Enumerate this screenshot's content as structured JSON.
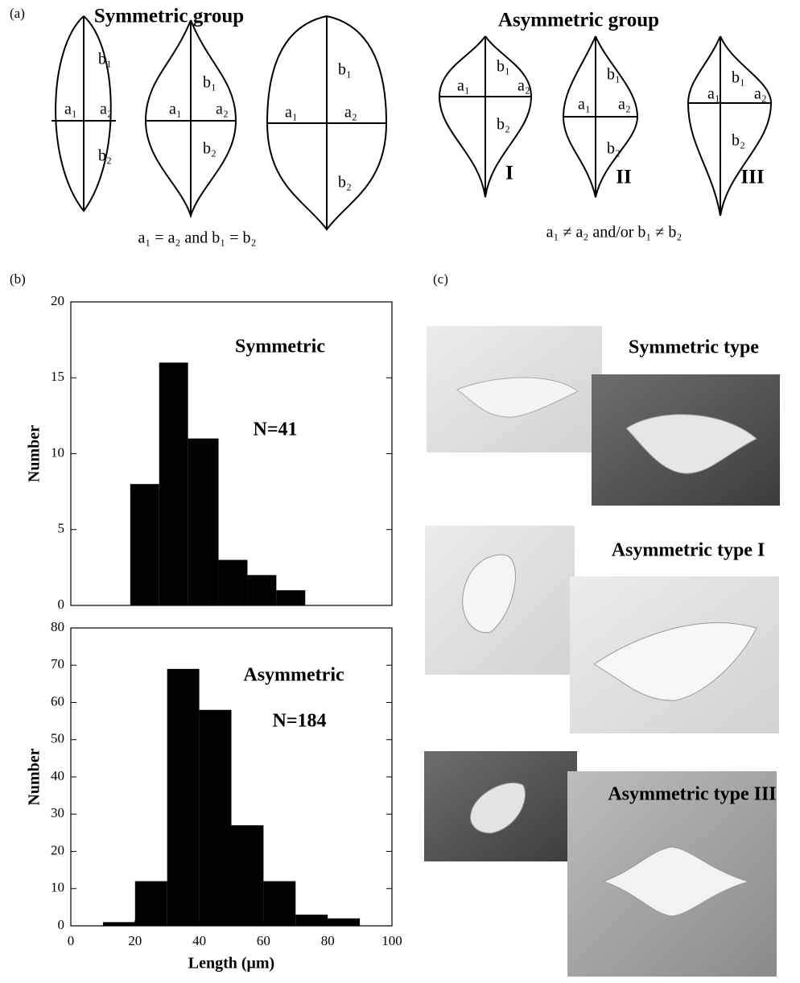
{
  "panel_labels": [
    "(a)",
    "(b)",
    "(c)"
  ],
  "diagram": {
    "symmetric": {
      "title": "Symmetric group",
      "condition": "a₁ = a₂  and  b₁ = b₂",
      "shapes": [
        {
          "labels": [
            "a₁",
            "a₂",
            "b₁",
            "b₂"
          ]
        },
        {
          "labels": [
            "a₁",
            "a₂",
            "b₁",
            "b₂"
          ]
        },
        {
          "labels": [
            "a₁",
            "a₂",
            "b₁",
            "b₂"
          ]
        }
      ]
    },
    "asymmetric": {
      "title": "Asymmetric group",
      "condition": "a₁ ≠ a₂  and/or  b₁ ≠ b₂",
      "shapes": [
        {
          "labels": [
            "a₁",
            "a₂",
            "b₁",
            "b₂"
          ],
          "numeral": "I"
        },
        {
          "labels": [
            "a₁",
            "a₂",
            "b₁",
            "b₂"
          ],
          "numeral": "II"
        },
        {
          "labels": [
            "a₁",
            "a₂",
            "b₁",
            "b₂"
          ],
          "numeral": "III"
        }
      ]
    }
  },
  "chart_data": [
    {
      "type": "histogram",
      "annotations": [
        "Symmetric",
        "N=41"
      ],
      "ylabel": "Number",
      "color": "#000000",
      "bins": [
        18.5,
        27.5,
        36.5,
        46,
        55,
        64,
        73
      ],
      "values": [
        8,
        16,
        11,
        3,
        2,
        1
      ],
      "xlim": [
        0,
        100
      ],
      "ylim": [
        0,
        20
      ],
      "yticks": [
        0,
        5,
        10,
        15,
        20
      ]
    },
    {
      "type": "histogram",
      "annotations": [
        "Asymmetric",
        "N=184"
      ],
      "ylabel": "Number",
      "xlabel": "Length (μm)",
      "color": "#000000",
      "bins": [
        10,
        20,
        30,
        40,
        50,
        60,
        70,
        80,
        90
      ],
      "values": [
        1,
        12,
        69,
        58,
        27,
        12,
        3,
        2
      ],
      "xlim": [
        0,
        100
      ],
      "ylim": [
        0,
        80
      ],
      "xticks": [
        0,
        20,
        40,
        60,
        80,
        100
      ],
      "yticks": [
        0,
        10,
        20,
        30,
        40,
        50,
        60,
        70,
        80
      ]
    }
  ],
  "photos": [
    {
      "title": "Symmetric type"
    },
    {
      "title": "Asymmetric type I"
    },
    {
      "title": "Asymmetric type III"
    }
  ]
}
